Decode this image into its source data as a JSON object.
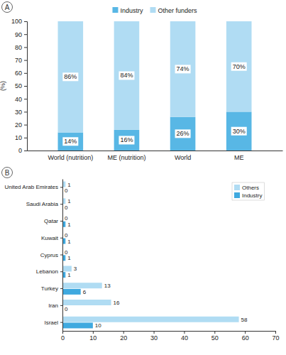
{
  "chart_data": [
    {
      "type": "bar",
      "title": "A",
      "stacked": true,
      "data_labels": true,
      "legend": "top",
      "y_label": "(%)",
      "categories": [
        "World (nutrition)",
        "ME (nutrition)",
        "World",
        "ME"
      ],
      "ylim": [
        0,
        100
      ],
      "yticks": [
        0,
        10,
        20,
        30,
        40,
        50,
        60,
        70,
        80,
        90,
        100
      ],
      "series": [
        {
          "name": "Industry",
          "color": "#58b7e5",
          "values": [
            14,
            16,
            26,
            30
          ],
          "value_labels": [
            "14%",
            "16%",
            "26%",
            "30%"
          ]
        },
        {
          "name": "Other funders",
          "color": "#b0dcf3",
          "values": [
            86,
            84,
            74,
            70
          ],
          "value_labels": [
            "86%",
            "84%",
            "74%",
            "70%"
          ]
        }
      ]
    },
    {
      "type": "bar",
      "title": "B",
      "orientation": "horizontal",
      "data_labels": true,
      "legend": "top-right",
      "categories": [
        "United Arab Emirates",
        "Saudi Arabia",
        "Qatar",
        "Kuwait",
        "Cyprus",
        "Lebanon",
        "Turkey",
        "Iran",
        "Israel"
      ],
      "xlim": [
        0,
        70
      ],
      "xticks": [
        0,
        10,
        20,
        30,
        40,
        50,
        60,
        70
      ],
      "series": [
        {
          "name": "Others",
          "color": "#b0dcf3",
          "values": [
            1,
            1,
            0,
            0,
            0,
            3,
            13,
            16,
            58
          ]
        },
        {
          "name": "Industry",
          "color": "#3fa9df",
          "values": [
            0,
            0,
            1,
            1,
            1,
            1,
            6,
            0,
            10
          ]
        }
      ]
    }
  ]
}
